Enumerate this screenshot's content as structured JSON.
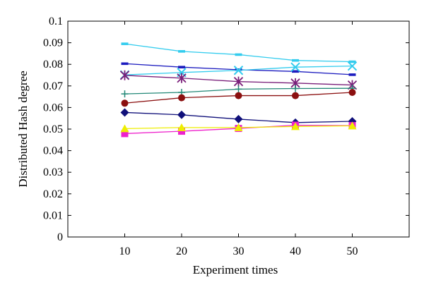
{
  "chart_data": {
    "type": "line",
    "title": "",
    "xlabel": "Experiment times",
    "ylabel": "Distributed Hash degree",
    "x": [
      10,
      20,
      30,
      40,
      50
    ],
    "xlim": [
      0,
      60
    ],
    "ylim": [
      0,
      0.1
    ],
    "x_ticks": [
      "10",
      "20",
      "30",
      "40",
      "50"
    ],
    "y_ticks": [
      "0",
      "0.01",
      "0.02",
      "0.03",
      "0.04",
      "0.05",
      "0.06",
      "0.07",
      "0.08",
      "0.09",
      "0.1"
    ],
    "grid": false,
    "legend": "none",
    "series": [
      {
        "color": "#33ccee",
        "marker": "dash",
        "values": [
          0.0895,
          0.086,
          0.0845,
          0.0818,
          0.0812
        ]
      },
      {
        "color": "#1c1cbf",
        "marker": "dash",
        "values": [
          0.0803,
          0.0787,
          0.0775,
          0.0767,
          0.0752
        ]
      },
      {
        "color": "#33ccee",
        "marker": "x",
        "values": [
          0.0751,
          0.0762,
          0.0772,
          0.0787,
          0.0792
        ]
      },
      {
        "color": "#7a1f7a",
        "marker": "star",
        "values": [
          0.0749,
          0.0736,
          0.072,
          0.0713,
          0.0704
        ]
      },
      {
        "color": "#228877",
        "marker": "plus",
        "values": [
          0.0663,
          0.067,
          0.0685,
          0.0688,
          0.0689
        ]
      },
      {
        "color": "#8b1010",
        "marker": "circle",
        "values": [
          0.062,
          0.0645,
          0.0655,
          0.0655,
          0.067
        ]
      },
      {
        "color": "#10107a",
        "marker": "diamond",
        "values": [
          0.0577,
          0.0566,
          0.0546,
          0.053,
          0.0536
        ]
      },
      {
        "color": "#ee22cc",
        "marker": "square",
        "values": [
          0.0479,
          0.049,
          0.0503,
          0.0518,
          0.0516
        ]
      },
      {
        "color": "#eeee00",
        "marker": "triangle",
        "values": [
          0.0502,
          0.0507,
          0.0507,
          0.0512,
          0.0515
        ]
      }
    ]
  }
}
